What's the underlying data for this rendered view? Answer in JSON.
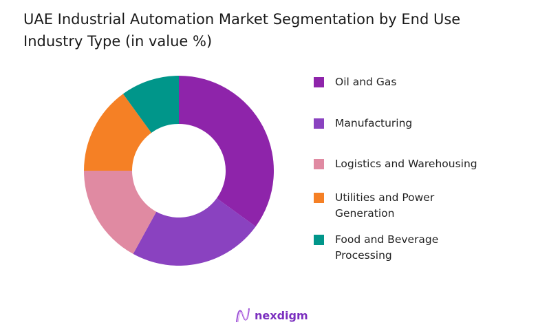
{
  "title": "UAE Industrial Automation Market Segmentation by End Use Industry Type (in value %)",
  "brand": "nexdigm",
  "chart_data": {
    "type": "pie",
    "variant": "donut",
    "title": "UAE Industrial Automation Market Segmentation by End Use Industry Type (in value %)",
    "legend_position": "right",
    "categories": [
      "Oil and Gas",
      "Manufacturing",
      "Logistics and Warehousing",
      "Utilities and Power Generation",
      "Food and Beverage Processing"
    ],
    "values": [
      35,
      23,
      17,
      15,
      10
    ],
    "colors": [
      "#8E24AA",
      "#8A42C0",
      "#E08AA2",
      "#F58025",
      "#00968A"
    ]
  }
}
